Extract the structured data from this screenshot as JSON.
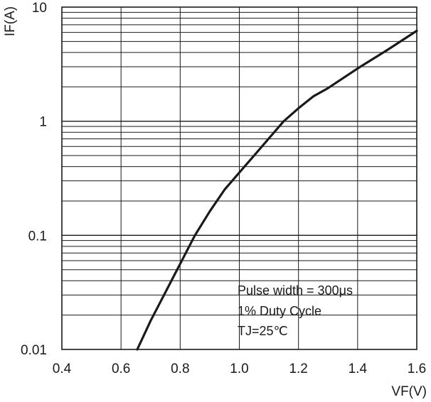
{
  "chart_data": {
    "type": "line",
    "xlabel": "VF(V)",
    "ylabel": "IF(A)",
    "x_scale": "linear",
    "y_scale": "log",
    "xlim": [
      0.4,
      1.6
    ],
    "ylim": [
      0.01,
      10
    ],
    "x_ticks": [
      "0.4",
      "0.6",
      "0.8",
      "1.0",
      "1.2",
      "1.4",
      "1.6"
    ],
    "y_ticks": [
      "0.01",
      "0.1",
      "1",
      "10"
    ],
    "grid": true,
    "series": [
      {
        "color": "#1a1a1a",
        "x": [
          0.655,
          0.7,
          0.75,
          0.8,
          0.85,
          0.9,
          0.95,
          1.0,
          1.05,
          1.1,
          1.15,
          1.2,
          1.25,
          1.3,
          1.4,
          1.5,
          1.6
        ],
        "y": [
          0.01,
          0.0178,
          0.0316,
          0.0562,
          0.1,
          0.162,
          0.251,
          0.355,
          0.5,
          0.708,
          1.0,
          1.3,
          1.65,
          1.95,
          2.9,
          4.2,
          6.2
        ]
      }
    ],
    "annotations": [
      "Pulse width = 300μs",
      "1% Duty Cycle",
      "TJ=25℃"
    ]
  }
}
